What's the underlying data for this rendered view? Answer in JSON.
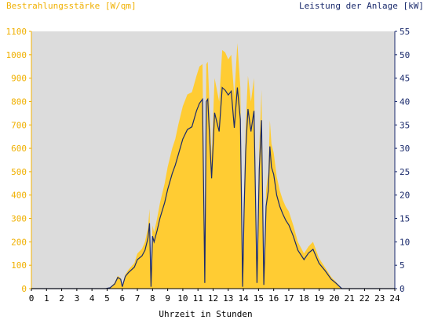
{
  "chart_data": {
    "type": "area",
    "title_left": "Bestrahlungsstärke [W/qm]",
    "title_right": "Leistung der Anlage [kW]",
    "xlabel": "Uhrzeit in Stunden",
    "xlim": [
      0,
      24
    ],
    "x_ticks": [
      "0",
      "1",
      "2",
      "3",
      "4",
      "5",
      "6",
      "7",
      "8",
      "9",
      "10",
      "11",
      "12",
      "13",
      "14",
      "15",
      "16",
      "17",
      "18",
      "19",
      "20",
      "21",
      "22",
      "23",
      "24"
    ],
    "y_left": {
      "lim": [
        0,
        1100
      ],
      "ticks": [
        "0",
        "100",
        "200",
        "300",
        "400",
        "500",
        "600",
        "700",
        "800",
        "900",
        "1000",
        "1100"
      ]
    },
    "y_right": {
      "lim": [
        0,
        55
      ],
      "ticks": [
        "0",
        "5",
        "10",
        "15",
        "20",
        "25",
        "30",
        "35",
        "40",
        "45",
        "50",
        "55"
      ]
    },
    "grid": false,
    "colors": {
      "plot_bg": "#dcdcdc",
      "irradiance_fill": "#ffcc33",
      "power_line": "#1a2a6c",
      "left_axis_text": "#f0b000",
      "right_axis_text": "#1a2a6c",
      "axis_text": "#000000"
    },
    "series": [
      {
        "axis": "left",
        "x": [
          0,
          4.9,
          5.2,
          5.5,
          5.7,
          5.9,
          6.0,
          6.2,
          6.4,
          6.8,
          7.0,
          7.3,
          7.5,
          7.7,
          7.8,
          7.9,
          8.0,
          8.1,
          8.3,
          8.5,
          8.8,
          9.0,
          9.3,
          9.5,
          9.7,
          10.0,
          10.3,
          10.6,
          10.9,
          11.1,
          11.3,
          11.45,
          11.55,
          11.65,
          11.9,
          12.1,
          12.4,
          12.6,
          12.8,
          13.0,
          13.2,
          13.4,
          13.6,
          13.8,
          13.95,
          14.05,
          14.15,
          14.3,
          14.5,
          14.7,
          14.9,
          15.05,
          15.2,
          15.35,
          15.5,
          15.65,
          15.75,
          15.85,
          16.0,
          16.2,
          16.4,
          16.6,
          16.8,
          17.0,
          17.3,
          17.6,
          18.0,
          18.3,
          18.6,
          19.0,
          19.4,
          19.8,
          20.1,
          20.5,
          24
        ],
        "values": [
          0,
          0,
          5,
          25,
          55,
          45,
          10,
          60,
          80,
          110,
          150,
          170,
          200,
          260,
          340,
          10,
          270,
          240,
          300,
          370,
          450,
          520,
          600,
          640,
          700,
          780,
          830,
          840,
          910,
          950,
          960,
          30,
          960,
          970,
          560,
          900,
          800,
          1020,
          1010,
          980,
          1000,
          820,
          1050,
          860,
          10,
          400,
          700,
          910,
          800,
          900,
          30,
          600,
          850,
          20,
          420,
          500,
          720,
          620,
          580,
          480,
          420,
          380,
          350,
          330,
          270,
          200,
          150,
          180,
          200,
          130,
          90,
          50,
          30,
          0,
          0
        ]
      },
      {
        "axis": "right",
        "x": [
          0,
          4.9,
          5.2,
          5.5,
          5.7,
          5.9,
          6.0,
          6.2,
          6.4,
          6.8,
          7.0,
          7.3,
          7.5,
          7.7,
          7.8,
          7.9,
          8.0,
          8.1,
          8.3,
          8.5,
          8.8,
          9.0,
          9.3,
          9.5,
          9.7,
          10.0,
          10.3,
          10.6,
          10.9,
          11.1,
          11.3,
          11.45,
          11.55,
          11.65,
          11.9,
          12.1,
          12.4,
          12.6,
          12.8,
          13.0,
          13.2,
          13.4,
          13.6,
          13.8,
          13.95,
          14.05,
          14.15,
          14.3,
          14.5,
          14.7,
          14.9,
          15.05,
          15.2,
          15.35,
          15.5,
          15.65,
          15.75,
          15.85,
          16.0,
          16.2,
          16.4,
          16.6,
          16.8,
          17.0,
          17.3,
          17.6,
          18.0,
          18.3,
          18.6,
          19.0,
          19.4,
          19.8,
          20.1,
          20.5,
          24
        ],
        "values": [
          0,
          0,
          0.2,
          1,
          2.4,
          2,
          0.4,
          2.6,
          3.4,
          4.6,
          6.2,
          7,
          8.2,
          10.8,
          14,
          0.4,
          11.2,
          10,
          12.4,
          15.2,
          18.4,
          21.2,
          24.6,
          26.4,
          28.6,
          32,
          34,
          34.6,
          38,
          39.6,
          40.5,
          1.2,
          40,
          40.5,
          23.6,
          37.6,
          33.6,
          43,
          42.4,
          41.4,
          42.2,
          34.4,
          43,
          36.2,
          0.4,
          16.8,
          29.4,
          38.4,
          33.6,
          38,
          1.2,
          25.4,
          36,
          0.8,
          17.6,
          21,
          30.4,
          26,
          24.4,
          20,
          17.6,
          16,
          14.6,
          13.6,
          11.2,
          8.2,
          6.2,
          7.6,
          8.4,
          5.4,
          3.8,
          2,
          1.2,
          0,
          0
        ]
      }
    ]
  }
}
